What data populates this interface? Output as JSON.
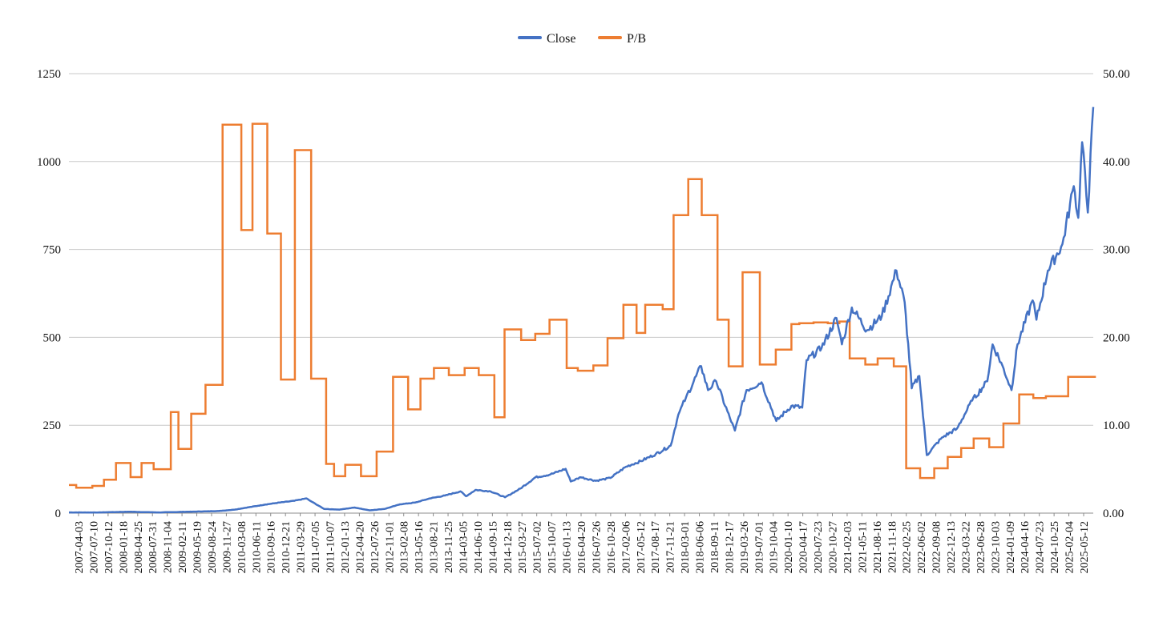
{
  "chart_data": {
    "type": "line",
    "legend_position": "top-center",
    "grid": "horizontal",
    "colors": {
      "Close": "#4472C4",
      "P/B": "#ED7D31",
      "grid": "#C8C8C8",
      "axis": "#8C8C8C"
    },
    "x_ticks": [
      "2007-04-03",
      "2007-07-10",
      "2007-10-12",
      "2008-01-18",
      "2008-04-25",
      "2008-07-31",
      "2008-11-04",
      "2009-02-11",
      "2009-05-19",
      "2009-08-24",
      "2009-11-27",
      "2010-03-08",
      "2010-06-11",
      "2010-09-16",
      "2010-12-21",
      "2011-03-29",
      "2011-07-05",
      "2011-10-07",
      "2012-01-13",
      "2012-04-20",
      "2012-07-26",
      "2012-11-01",
      "2013-02-08",
      "2013-05-16",
      "2013-08-21",
      "2013-11-25",
      "2014-03-05",
      "2014-06-10",
      "2014-09-15",
      "2014-12-18",
      "2015-03-27",
      "2015-07-02",
      "2015-10-07",
      "2016-01-13",
      "2016-04-20",
      "2016-07-26",
      "2016-10-28",
      "2017-02-06",
      "2017-05-12",
      "2017-08-17",
      "2017-11-21",
      "2018-03-01",
      "2018-06-06",
      "2018-09-11",
      "2018-12-17",
      "2019-03-26",
      "2019-07-01",
      "2019-10-04",
      "2020-01-10",
      "2020-04-17",
      "2020-07-23",
      "2020-10-27",
      "2021-02-03",
      "2021-05-11",
      "2021-08-16",
      "2021-11-18",
      "2022-02-25",
      "2022-06-02",
      "2022-09-08",
      "2022-12-13",
      "2023-03-22",
      "2023-06-28",
      "2023-10-03",
      "2024-01-09",
      "2024-04-16",
      "2024-07-23",
      "2024-10-25",
      "2025-02-04",
      "2025-05-12"
    ],
    "y_left": {
      "min": 0,
      "max": 1250,
      "ticks": [
        "0",
        "250",
        "500",
        "750",
        "1000",
        "1250"
      ]
    },
    "y_right": {
      "min": 0,
      "max": 50,
      "ticks": [
        "0.00",
        "10.00",
        "20.00",
        "30.00",
        "40.00",
        "50.00"
      ]
    },
    "series": [
      {
        "name": "Close",
        "axis": "left",
        "points": [
          [
            "2007-04-03",
            2
          ],
          [
            "2007-07-10",
            2
          ],
          [
            "2007-10-12",
            2
          ],
          [
            "2008-01-18",
            3
          ],
          [
            "2008-04-25",
            4
          ],
          [
            "2008-07-31",
            3
          ],
          [
            "2008-11-04",
            2
          ],
          [
            "2009-02-11",
            3
          ],
          [
            "2009-05-19",
            4
          ],
          [
            "2009-08-24",
            5
          ],
          [
            "2009-11-27",
            6
          ],
          [
            "2010-03-08",
            10
          ],
          [
            "2010-06-11",
            17
          ],
          [
            "2010-09-16",
            24
          ],
          [
            "2010-12-21",
            30
          ],
          [
            "2011-03-29",
            35
          ],
          [
            "2011-06-15",
            42
          ],
          [
            "2011-07-05",
            36
          ],
          [
            "2011-10-07",
            12
          ],
          [
            "2012-01-13",
            10
          ],
          [
            "2012-04-20",
            16
          ],
          [
            "2012-07-26",
            8
          ],
          [
            "2012-11-01",
            12
          ],
          [
            "2013-02-08",
            25
          ],
          [
            "2013-05-16",
            30
          ],
          [
            "2013-08-21",
            42
          ],
          [
            "2013-11-25",
            50
          ],
          [
            "2014-03-05",
            62
          ],
          [
            "2014-04-10",
            48
          ],
          [
            "2014-06-10",
            66
          ],
          [
            "2014-09-15",
            62
          ],
          [
            "2014-12-18",
            45
          ],
          [
            "2015-03-27",
            70
          ],
          [
            "2015-07-02",
            102
          ],
          [
            "2015-10-07",
            110
          ],
          [
            "2016-01-13",
            126
          ],
          [
            "2016-02-15",
            90
          ],
          [
            "2016-04-20",
            102
          ],
          [
            "2016-07-26",
            92
          ],
          [
            "2016-10-28",
            100
          ],
          [
            "2017-02-06",
            132
          ],
          [
            "2017-05-12",
            148
          ],
          [
            "2017-08-17",
            168
          ],
          [
            "2017-11-21",
            192
          ],
          [
            "2018-01-10",
            280
          ],
          [
            "2018-03-01",
            330
          ],
          [
            "2018-06-06",
            418
          ],
          [
            "2018-07-20",
            350
          ],
          [
            "2018-09-11",
            375
          ],
          [
            "2018-12-17",
            260
          ],
          [
            "2019-01-10",
            235
          ],
          [
            "2019-03-26",
            350
          ],
          [
            "2019-07-01",
            372
          ],
          [
            "2019-10-04",
            262
          ],
          [
            "2020-01-10",
            305
          ],
          [
            "2020-03-20",
            300
          ],
          [
            "2020-04-17",
            435
          ],
          [
            "2020-07-23",
            470
          ],
          [
            "2020-10-27",
            555
          ],
          [
            "2020-12-01",
            480
          ],
          [
            "2021-02-03",
            585
          ],
          [
            "2021-05-11",
            520
          ],
          [
            "2021-08-16",
            560
          ],
          [
            "2021-11-18",
            690
          ],
          [
            "2022-01-10",
            600
          ],
          [
            "2022-02-25",
            355
          ],
          [
            "2022-04-15",
            390
          ],
          [
            "2022-06-02",
            165
          ],
          [
            "2022-09-08",
            215
          ],
          [
            "2022-12-13",
            240
          ],
          [
            "2023-03-22",
            320
          ],
          [
            "2023-06-28",
            375
          ],
          [
            "2023-08-01",
            480
          ],
          [
            "2023-10-03",
            420
          ],
          [
            "2023-12-01",
            350
          ],
          [
            "2024-01-09",
            480
          ],
          [
            "2024-04-16",
            605
          ],
          [
            "2024-05-10",
            550
          ],
          [
            "2024-07-23",
            690
          ],
          [
            "2024-10-25",
            765
          ],
          [
            "2025-01-06",
            930
          ],
          [
            "2025-02-04",
            840
          ],
          [
            "2025-03-01",
            1055
          ],
          [
            "2025-04-07",
            855
          ],
          [
            "2025-05-12",
            1155
          ]
        ]
      },
      {
        "name": "P/B",
        "axis": "right",
        "steps": [
          [
            "2007-04-03",
            3.2
          ],
          [
            "2007-05-20",
            2.9
          ],
          [
            "2007-09-01",
            3.1
          ],
          [
            "2007-11-15",
            3.8
          ],
          [
            "2008-02-01",
            5.7
          ],
          [
            "2008-05-05",
            4.1
          ],
          [
            "2008-07-15",
            5.7
          ],
          [
            "2008-10-01",
            5.0
          ],
          [
            "2009-01-20",
            11.5
          ],
          [
            "2009-03-10",
            7.3
          ],
          [
            "2009-06-01",
            11.3
          ],
          [
            "2009-09-01",
            14.6
          ],
          [
            "2009-12-20",
            44.2
          ],
          [
            "2010-04-20",
            32.2
          ],
          [
            "2010-07-01",
            44.3
          ],
          [
            "2010-10-05",
            31.8
          ],
          [
            "2011-01-01",
            15.2
          ],
          [
            "2011-04-01",
            41.3
          ],
          [
            "2011-07-15",
            15.3
          ],
          [
            "2011-10-20",
            5.6
          ],
          [
            "2011-12-10",
            4.2
          ],
          [
            "2012-02-20",
            5.5
          ],
          [
            "2012-06-01",
            4.2
          ],
          [
            "2012-09-10",
            7.0
          ],
          [
            "2012-12-25",
            15.5
          ],
          [
            "2013-04-01",
            11.8
          ],
          [
            "2013-06-20",
            15.3
          ],
          [
            "2013-09-15",
            16.5
          ],
          [
            "2013-12-20",
            15.7
          ],
          [
            "2014-04-01",
            16.5
          ],
          [
            "2014-07-01",
            15.7
          ],
          [
            "2014-10-10",
            10.9
          ],
          [
            "2014-12-15",
            20.9
          ],
          [
            "2015-04-01",
            19.7
          ],
          [
            "2015-07-01",
            20.4
          ],
          [
            "2015-10-01",
            22.0
          ],
          [
            "2016-01-20",
            16.5
          ],
          [
            "2016-04-01",
            16.2
          ],
          [
            "2016-07-10",
            16.8
          ],
          [
            "2016-10-10",
            19.9
          ],
          [
            "2017-01-20",
            23.7
          ],
          [
            "2017-04-15",
            20.5
          ],
          [
            "2017-06-10",
            23.7
          ],
          [
            "2017-10-01",
            23.2
          ],
          [
            "2017-12-10",
            33.9
          ],
          [
            "2018-03-15",
            38.0
          ],
          [
            "2018-06-10",
            33.9
          ],
          [
            "2018-09-20",
            22.0
          ],
          [
            "2018-12-01",
            16.7
          ],
          [
            "2019-03-01",
            27.4
          ],
          [
            "2019-06-20",
            16.9
          ],
          [
            "2019-10-01",
            18.6
          ],
          [
            "2020-01-10",
            21.5
          ],
          [
            "2020-03-01",
            21.6
          ],
          [
            "2020-06-01",
            21.7
          ],
          [
            "2020-09-01",
            21.6
          ],
          [
            "2020-11-15",
            21.8
          ],
          [
            "2021-01-20",
            17.6
          ],
          [
            "2021-05-01",
            16.9
          ],
          [
            "2021-07-20",
            17.6
          ],
          [
            "2021-11-01",
            16.7
          ],
          [
            "2022-01-20",
            5.1
          ],
          [
            "2022-04-20",
            4.0
          ],
          [
            "2022-07-20",
            5.1
          ],
          [
            "2022-10-15",
            6.4
          ],
          [
            "2023-01-10",
            7.4
          ],
          [
            "2023-04-01",
            8.5
          ],
          [
            "2023-07-10",
            7.5
          ],
          [
            "2023-10-10",
            10.2
          ],
          [
            "2024-01-20",
            13.5
          ],
          [
            "2024-04-20",
            13.1
          ],
          [
            "2024-07-10",
            13.3
          ],
          [
            "2024-10-20",
            13.3
          ],
          [
            "2024-12-01",
            15.5
          ],
          [
            "2025-02-04",
            15.5
          ]
        ]
      }
    ]
  }
}
